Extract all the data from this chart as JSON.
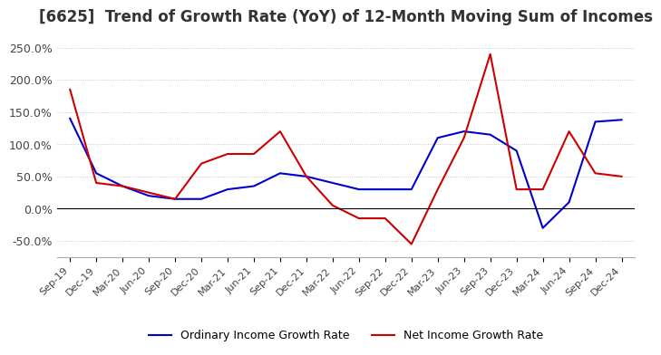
{
  "title": "[6625]  Trend of Growth Rate (YoY) of 12-Month Moving Sum of Incomes",
  "title_fontsize": 12,
  "ylim": [
    -75,
    275
  ],
  "background_color": "#ffffff",
  "ordinary_color": "#0000cc",
  "net_color": "#cc0000",
  "legend_ordinary": "Ordinary Income Growth Rate",
  "legend_net": "Net Income Growth Rate",
  "x_labels": [
    "Sep-19",
    "Dec-19",
    "Mar-20",
    "Jun-20",
    "Sep-20",
    "Dec-20",
    "Mar-21",
    "Jun-21",
    "Sep-21",
    "Dec-21",
    "Mar-22",
    "Jun-22",
    "Sep-22",
    "Dec-22",
    "Mar-23",
    "Jun-23",
    "Sep-23",
    "Dec-23",
    "Mar-24",
    "Jun-24",
    "Sep-24",
    "Dec-24"
  ],
  "ordinary_values": [
    140,
    55,
    35,
    20,
    15,
    15,
    30,
    35,
    55,
    50,
    40,
    30,
    30,
    30,
    110,
    120,
    115,
    90,
    -30,
    10,
    135,
    138
  ],
  "net_values": [
    185,
    40,
    35,
    25,
    15,
    70,
    85,
    85,
    120,
    50,
    5,
    -15,
    -15,
    -55,
    30,
    110,
    240,
    30,
    30,
    120,
    55,
    50
  ],
  "yticks": [
    -50,
    0,
    50,
    100,
    150,
    200,
    250
  ],
  "grid_color": "#bbbbbb",
  "grid_style": ":"
}
